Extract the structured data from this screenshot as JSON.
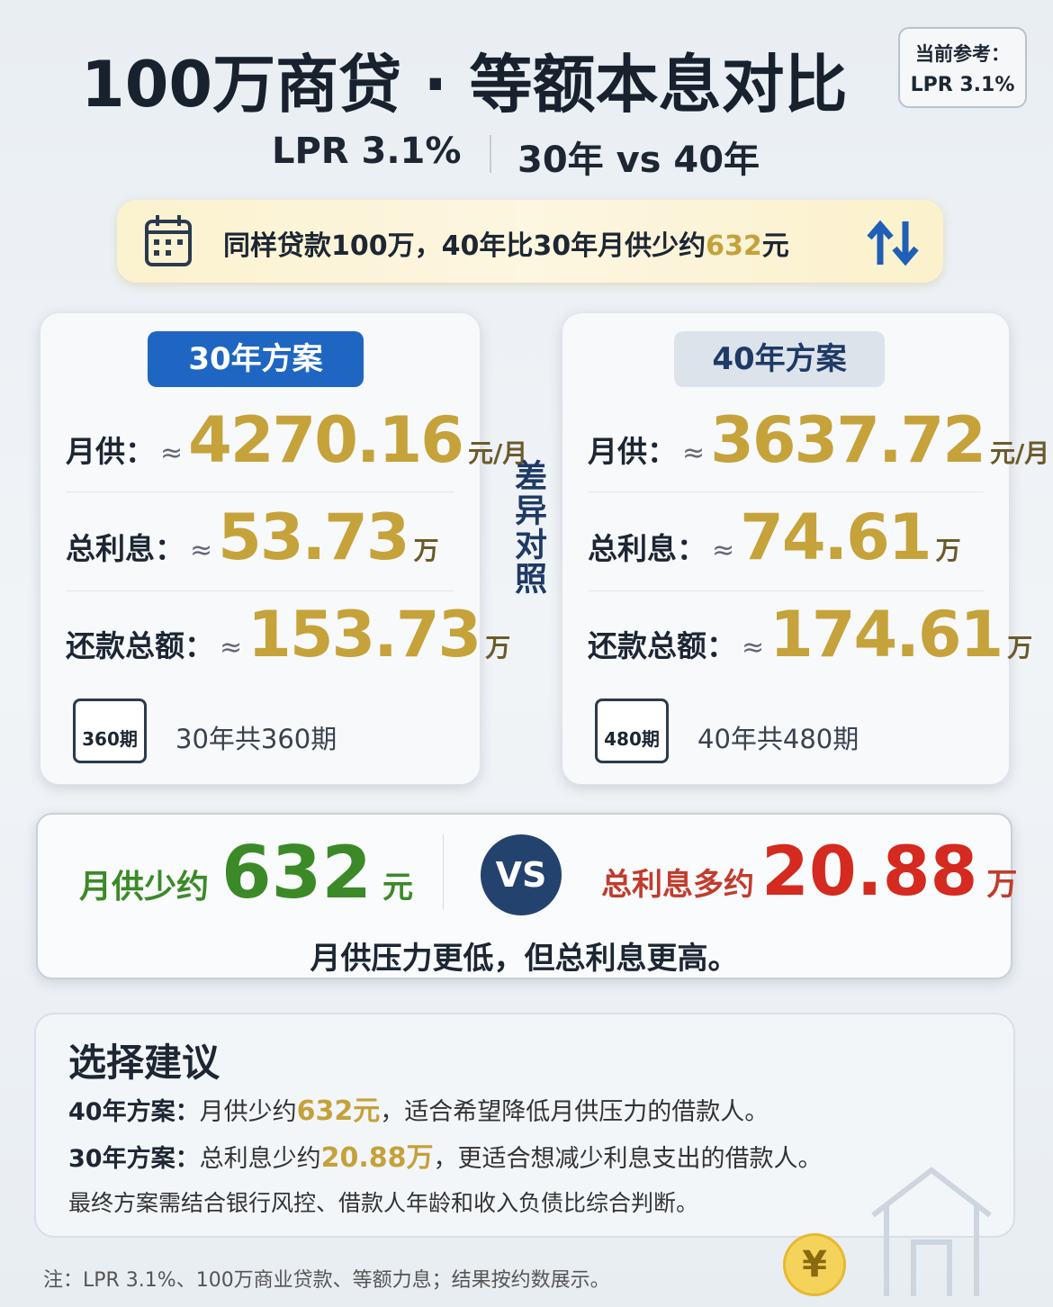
{
  "header": {
    "title": "100万商贷 · 等额本息对比",
    "badge": [
      "当前参考：",
      "LPR 3.1%"
    ],
    "subtitle": [
      "LPR 3.1%",
      "30年 vs 40年"
    ]
  },
  "banner": {
    "pre": "同样贷款100万，40年比30年月供少约",
    "num": "632",
    "post": "元"
  },
  "plans": [
    {
      "tag": "30年方案",
      "rows": [
        {
          "label": "月供：",
          "approx": "≈",
          "value": "4270.16",
          "unit": "元/月"
        },
        {
          "label": "总利息：",
          "approx": "≈",
          "value": "53.73",
          "unit": "万"
        },
        {
          "label": "还款总额：",
          "approx": "≈",
          "value": "153.73",
          "unit": "万"
        }
      ],
      "badge": "360期",
      "periods": "30年共360期"
    },
    {
      "tag": "40年方案",
      "rows": [
        {
          "label": "月供：",
          "approx": "≈",
          "value": "3637.72",
          "unit": "元/月"
        },
        {
          "label": "总利息：",
          "approx": "≈",
          "value": "74.61",
          "unit": "万"
        },
        {
          "label": "还款总额：",
          "approx": "≈",
          "value": "174.61",
          "unit": "万"
        }
      ],
      "badge": "480期",
      "periods": "40年共480期"
    }
  ],
  "divider": "差异对照",
  "compare": {
    "left": {
      "label": "月供少约",
      "value": "632",
      "unit": "元"
    },
    "vs": "VS",
    "right": {
      "label": "总利息多约",
      "value": "20.88",
      "unit": "万"
    },
    "note": "月供压力更低，但总利息更高。"
  },
  "advice": {
    "title": "选择建议",
    "lines": [
      {
        "label": "40年方案：",
        "pre": "月供少约",
        "hl": "632元",
        "post": "，适合希望降低月供压力的借款人。"
      },
      {
        "label": "30年方案：",
        "pre": "总利息少约",
        "hl": "20.88万",
        "post": "，更适合想减少利息支出的借款人。"
      }
    ],
    "final": "最终方案需结合银行风控、借款人年龄和收入负债比综合判断。"
  },
  "coin": "¥",
  "footnote": "注：LPR 3.1%、100万商业贷款、等额力息；结果按约数展示。"
}
